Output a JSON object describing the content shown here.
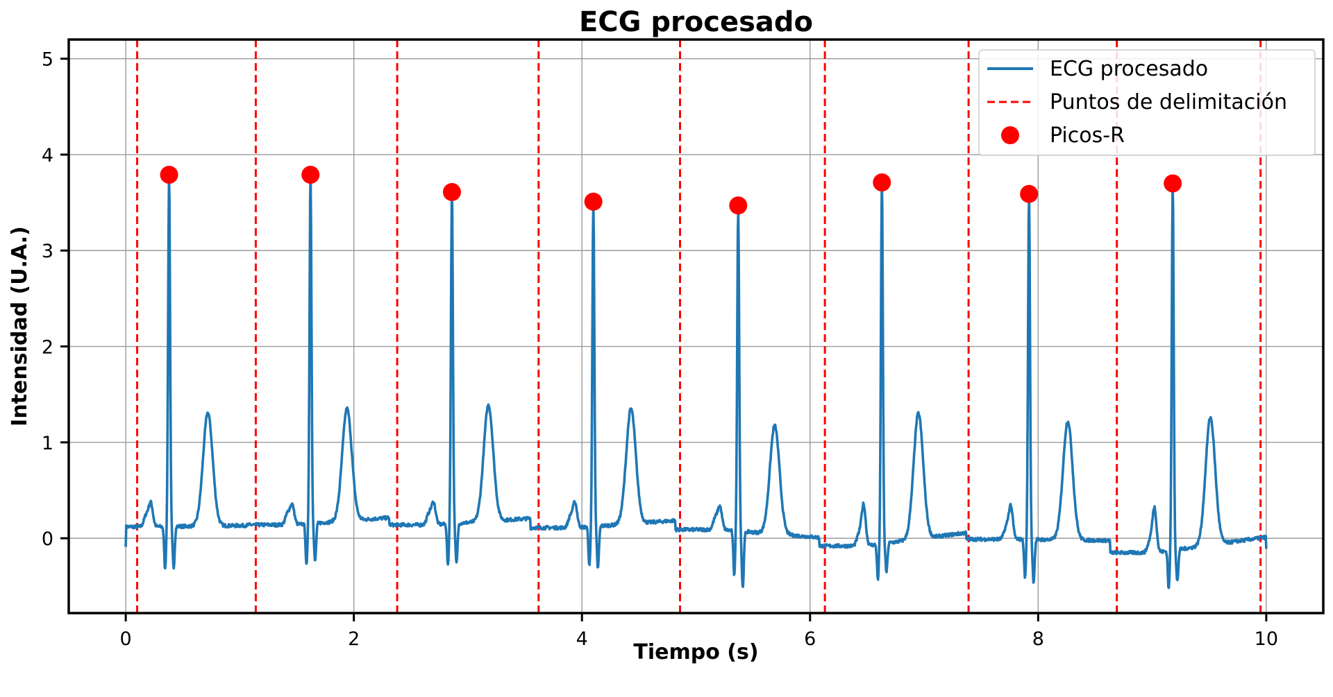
{
  "chart_data": {
    "type": "line",
    "title": "ECG procesado",
    "xlabel": "Tiempo (s)",
    "ylabel": "Intensidad (U.A.)",
    "xlim": [
      -0.5,
      10.5
    ],
    "ylim": [
      -0.78,
      5.2
    ],
    "xticks": [
      0,
      2,
      4,
      6,
      8,
      10
    ],
    "yticks": [
      0,
      1,
      2,
      3,
      4,
      5
    ],
    "grid": true,
    "legend_position": "top-right",
    "legend": [
      "ECG procesado",
      "Puntos de delimitación",
      "Picos-R"
    ],
    "colors": {
      "ecg": "#1f77b4",
      "delimitation": "#ff0000",
      "peaks": "#ff0000"
    },
    "series": [
      {
        "name": "ECG procesado",
        "style": "solid-line",
        "beats": [
          {
            "r_time": 0.38,
            "r_amp": 3.79,
            "baseline_start": 0.12,
            "baseline_end": 0.14,
            "p_amp": 0.36,
            "q_depth": -0.33,
            "s_depth": -0.31,
            "t_time": 0.72,
            "t_amp": 1.3
          },
          {
            "r_time": 1.62,
            "r_amp": 3.79,
            "baseline_start": 0.14,
            "baseline_end": 0.25,
            "p_amp": 0.34,
            "q_depth": -0.3,
            "s_depth": -0.26,
            "t_time": 1.94,
            "t_amp": 1.31
          },
          {
            "r_time": 2.86,
            "r_amp": 3.61,
            "baseline_start": 0.14,
            "baseline_end": 0.24,
            "p_amp": 0.36,
            "q_depth": -0.3,
            "s_depth": -0.28,
            "t_time": 3.18,
            "t_amp": 1.35
          },
          {
            "r_time": 4.1,
            "r_amp": 3.51,
            "baseline_start": 0.11,
            "baseline_end": 0.22,
            "p_amp": 0.36,
            "q_depth": -0.31,
            "s_depth": -0.33,
            "t_time": 4.43,
            "t_amp": 1.31
          },
          {
            "r_time": 5.37,
            "r_amp": 3.47,
            "baseline_start": 0.09,
            "baseline_end": -0.03,
            "p_amp": 0.32,
            "q_depth": -0.37,
            "s_depth": -0.5,
            "t_time": 5.69,
            "t_amp": 1.22
          },
          {
            "r_time": 6.63,
            "r_amp": 3.71,
            "baseline_start": -0.08,
            "baseline_end": 0.12,
            "p_amp": 0.34,
            "q_depth": -0.45,
            "s_depth": -0.38,
            "t_time": 6.95,
            "t_amp": 1.23
          },
          {
            "r_time": 7.92,
            "r_amp": 3.59,
            "baseline_start": -0.01,
            "baseline_end": -0.03,
            "p_amp": 0.33,
            "q_depth": -0.41,
            "s_depth": -0.45,
            "t_time": 8.26,
            "t_amp": 1.23
          },
          {
            "r_time": 9.18,
            "r_amp": 3.7,
            "baseline_start": -0.15,
            "baseline_end": 0.07,
            "p_amp": 0.31,
            "q_depth": -0.55,
            "s_depth": -0.48,
            "t_time": 9.51,
            "t_amp": 1.18
          }
        ],
        "start": {
          "x": 0.0,
          "y": -0.09
        },
        "end": {
          "x": 10.0,
          "y": -0.11
        }
      },
      {
        "name": "Puntos de delimitación",
        "style": "dashed-vertical-lines",
        "x": [
          0.1,
          1.14,
          2.38,
          3.62,
          4.86,
          6.13,
          7.39,
          8.69,
          9.95
        ]
      },
      {
        "name": "Picos-R",
        "style": "markers",
        "x": [
          0.38,
          1.62,
          2.86,
          4.1,
          5.37,
          6.63,
          7.92,
          9.18
        ],
        "y": [
          3.79,
          3.79,
          3.61,
          3.51,
          3.47,
          3.71,
          3.59,
          3.7
        ]
      }
    ]
  }
}
